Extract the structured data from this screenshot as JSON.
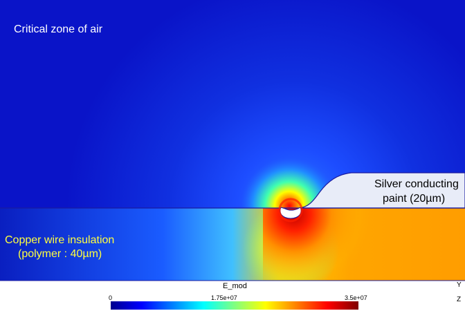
{
  "labels": {
    "air": "Critical zone of air",
    "insulation_line1": "Copper wire insulation",
    "insulation_line2": "(polymer : 40µm)",
    "paint_line1": "Silver conducting",
    "paint_line2": "paint  (20µm)"
  },
  "colorbar": {
    "title": "E_mod",
    "ticks": [
      "0",
      "1.75e+07",
      "3.5e+07"
    ],
    "min": 0,
    "max": 35000000
  },
  "axes_triad": {
    "y": "Y",
    "z": "Z"
  },
  "colors": {
    "background_field": "#0a14c8",
    "boundary": "#1a1aa0",
    "paint_fill": "#e8ecf8"
  }
}
